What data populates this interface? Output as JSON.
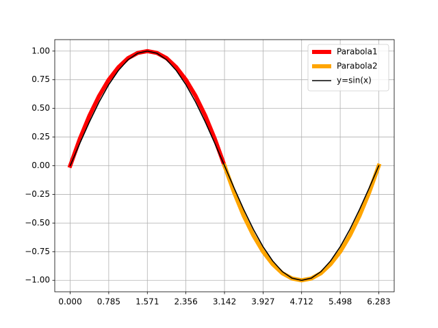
{
  "chart_data": {
    "type": "line",
    "xlim": [
      -0.314,
      6.597
    ],
    "ylim": [
      -1.1,
      1.1
    ],
    "xticks": [
      {
        "value": 0,
        "label": "0.000"
      },
      0.785,
      1.571,
      2.356,
      3.142,
      3.927,
      4.712,
      5.498,
      6.283
    ],
    "yticks": [
      {
        "value": -1,
        "label": "−1.00"
      },
      {
        "value": -0.75,
        "label": "−0.75"
      },
      {
        "value": -0.5,
        "label": "−0.50"
      },
      {
        "value": -0.25,
        "label": "−0.25"
      },
      {
        "value": 0,
        "label": "0.00"
      },
      {
        "value": 0.25,
        "label": "0.25"
      },
      {
        "value": 0.5,
        "label": "0.50"
      },
      {
        "value": 0.75,
        "label": "0.75"
      },
      {
        "value": 1,
        "label": "1.00"
      }
    ],
    "grid": true,
    "legend": "upper right",
    "series": [
      {
        "name": "Parabola1",
        "color": "#ff0000",
        "width": 6,
        "x": [
          0,
          0.196,
          0.393,
          0.589,
          0.785,
          0.982,
          1.178,
          1.374,
          1.571,
          1.767,
          1.963,
          2.16,
          2.356,
          2.553,
          2.749,
          2.945,
          3.142
        ],
        "values": [
          0,
          0.234,
          0.438,
          0.609,
          0.75,
          0.859,
          0.938,
          0.984,
          1,
          0.984,
          0.938,
          0.859,
          0.75,
          0.609,
          0.438,
          0.234,
          0
        ]
      },
      {
        "name": "Parabola2",
        "color": "#ffa500",
        "width": 6,
        "x": [
          3.142,
          3.338,
          3.534,
          3.731,
          3.927,
          4.123,
          4.32,
          4.516,
          4.712,
          4.909,
          5.105,
          5.301,
          5.498,
          5.694,
          5.89,
          6.087,
          6.283
        ],
        "values": [
          0,
          -0.234,
          -0.438,
          -0.609,
          -0.75,
          -0.859,
          -0.938,
          -0.984,
          -1,
          -0.984,
          -0.938,
          -0.859,
          -0.75,
          -0.609,
          -0.438,
          -0.234,
          0
        ]
      },
      {
        "name": "y=sin(x)",
        "color": "#000000",
        "width": 1.6,
        "x": [
          0,
          0.196,
          0.393,
          0.589,
          0.785,
          0.982,
          1.178,
          1.374,
          1.571,
          1.767,
          1.963,
          2.16,
          2.356,
          2.553,
          2.749,
          2.945,
          3.142,
          3.338,
          3.534,
          3.731,
          3.927,
          4.123,
          4.32,
          4.516,
          4.712,
          4.909,
          5.105,
          5.301,
          5.498,
          5.694,
          5.89,
          6.087,
          6.283
        ],
        "values": [
          0,
          0.195,
          0.383,
          0.556,
          0.707,
          0.831,
          0.924,
          0.981,
          1,
          0.981,
          0.924,
          0.831,
          0.707,
          0.556,
          0.383,
          0.195,
          0,
          -0.195,
          -0.383,
          -0.556,
          -0.707,
          -0.831,
          -0.924,
          -0.981,
          -1,
          -0.981,
          -0.924,
          -0.831,
          -0.707,
          -0.556,
          -0.383,
          -0.195,
          0
        ]
      }
    ]
  }
}
